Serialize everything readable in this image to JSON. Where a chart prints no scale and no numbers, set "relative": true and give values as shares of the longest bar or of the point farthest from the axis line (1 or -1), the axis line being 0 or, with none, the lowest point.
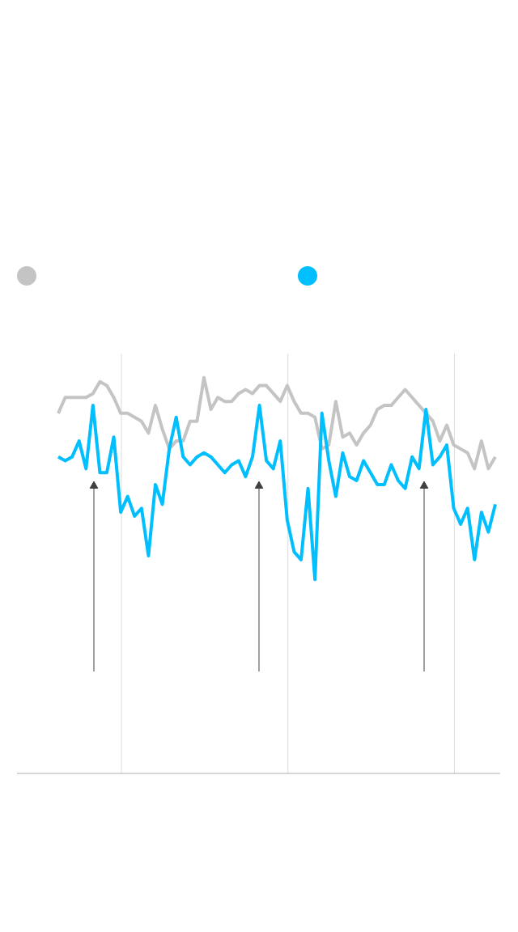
{
  "chart_data": {
    "type": "line",
    "relative": true,
    "grid": true,
    "marker": "none",
    "line_style": "solid",
    "categories": [
      null,
      null,
      null,
      null,
      null,
      null,
      null,
      null,
      null,
      null,
      null,
      null,
      null,
      null,
      null,
      null,
      null,
      null,
      null,
      null,
      null,
      null,
      null,
      null,
      null,
      null,
      null,
      null,
      null,
      null,
      null,
      null,
      null,
      null,
      null,
      null,
      null,
      null,
      null,
      null,
      null,
      null,
      null,
      null,
      null,
      null,
      null,
      null,
      null,
      null,
      null,
      null,
      null,
      null,
      null,
      null,
      null,
      null,
      null,
      null,
      null,
      null,
      null,
      null
    ],
    "series": [
      {
        "color": "#c4c4c4",
        "values": [
          0.91,
          0.95,
          0.95,
          0.95,
          0.95,
          0.96,
          0.99,
          0.98,
          0.95,
          0.91,
          0.91,
          0.9,
          0.89,
          0.86,
          0.93,
          0.87,
          0.82,
          0.84,
          0.84,
          0.89,
          0.89,
          1,
          0.92,
          0.95,
          0.94,
          0.94,
          0.96,
          0.97,
          0.96,
          0.98,
          0.98,
          0.96,
          0.94,
          0.98,
          0.94,
          0.91,
          0.91,
          0.9,
          0.82,
          0.83,
          0.94,
          0.85,
          0.86,
          0.83,
          0.86,
          0.88,
          0.92,
          0.93,
          0.93,
          0.95,
          0.97,
          0.95,
          0.93,
          0.91,
          0.89,
          0.84,
          0.88,
          0.83,
          0.82,
          0.81,
          0.77,
          0.84,
          0.77,
          0.8
        ]
      },
      {
        "color": "#00bfff",
        "values": [
          0.8,
          0.79,
          0.8,
          0.84,
          0.77,
          0.93,
          0.76,
          0.76,
          0.85,
          0.66,
          0.7,
          0.65,
          0.67,
          0.55,
          0.73,
          0.68,
          0.82,
          0.9,
          0.8,
          0.78,
          0.8,
          0.81,
          0.8,
          0.78,
          0.76,
          0.78,
          0.79,
          0.75,
          0.8,
          0.93,
          0.79,
          0.77,
          0.84,
          0.64,
          0.56,
          0.54,
          0.72,
          0.49,
          0.91,
          0.79,
          0.7,
          0.81,
          0.75,
          0.74,
          0.79,
          0.76,
          0.73,
          0.73,
          0.78,
          0.74,
          0.72,
          0.8,
          0.77,
          0.92,
          0.78,
          0.8,
          0.83,
          0.67,
          0.63,
          0.67,
          0.54,
          0.66,
          0.61,
          0.68
        ]
      }
    ]
  }
}
